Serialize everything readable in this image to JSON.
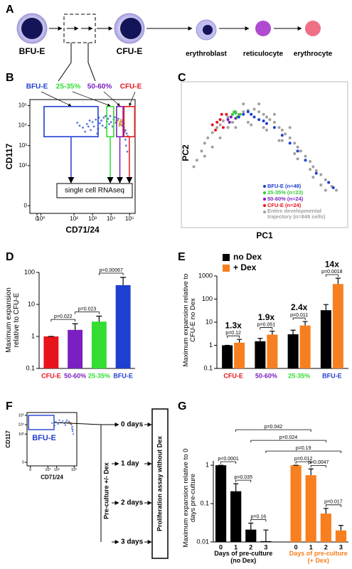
{
  "panel_labels": [
    "A",
    "B",
    "C",
    "D",
    "E",
    "F",
    "G"
  ],
  "diagram": {
    "cells": [
      "BFU-E",
      "CFU-E",
      "erythroblast",
      "reticulocyte",
      "erythrocyte"
    ]
  },
  "flowchart": {
    "steps": [
      "0 days",
      "1 day",
      "2 days",
      "3 days"
    ],
    "treatment": "Pre-culture +/- Dex",
    "assay": "Proliferation assay without Dex"
  },
  "chart_data": [
    {
      "type": "flow",
      "x_label": "CD71/24",
      "y_label": "CD117",
      "scale": "biexponential",
      "xlim": [
        -2,
        200000
      ],
      "ylim": [
        -2,
        200000
      ],
      "xticks": [
        0,
        {
          "value": 1,
          "label": "10⁰"
        },
        {
          "value": 100,
          "label": "10²"
        },
        {
          "value": 1000,
          "label": "10³"
        },
        {
          "value": 10000,
          "label": "10⁴"
        },
        {
          "value": 100000,
          "label": "10⁵"
        }
      ],
      "yticks": [
        0,
        {
          "value": 100,
          "label": "10²"
        },
        {
          "value": 1000,
          "label": "10³"
        },
        {
          "value": 10000,
          "label": "10⁴"
        },
        {
          "value": 100000,
          "label": "10⁵"
        }
      ],
      "series": [
        {
          "color": "#3d5fd6",
          "x": [
            300,
            500,
            800,
            1000,
            1200,
            1500,
            2000,
            2500,
            3000,
            3500,
            4000,
            5000,
            6000,
            7000,
            8000,
            9000,
            10000,
            12000,
            14000,
            16000,
            18000,
            20000,
            25000,
            30000,
            35000,
            40000,
            45000,
            50000,
            60000,
            70000,
            80000,
            55000,
            400,
            700,
            1800,
            2200,
            60000,
            65000,
            75000,
            5000,
            200,
            150,
            600
          ],
          "y": [
            8000,
            12000,
            6000,
            15000,
            9000,
            20000,
            7000,
            13000,
            18000,
            10000,
            25000,
            8000,
            16000,
            22000,
            12000,
            30000,
            15000,
            9000,
            20000,
            26000,
            14000,
            18000,
            22000,
            12000,
            16000,
            10000,
            14000,
            8000,
            6000,
            4000,
            3000,
            5000,
            5000,
            18000,
            4000,
            25000,
            2000,
            1000,
            500,
            30000,
            10000,
            14000,
            9000
          ]
        },
        {
          "color": "#f0a020",
          "x": [
            20000,
            25000,
            30000,
            35000,
            40000,
            45000,
            28000,
            50000,
            38000,
            32000
          ],
          "y": [
            15000,
            18000,
            14000,
            20000,
            12000,
            16000,
            10000,
            13000,
            17000,
            11000
          ]
        }
      ],
      "gates": [
        {
          "label": "BFU-E",
          "color": "#1f3fd0",
          "x": [
            2,
            2000
          ],
          "y": [
            2800,
            90000
          ]
        },
        {
          "label": "25-35%",
          "color": "#33dd33",
          "x": [
            5900,
            14000
          ],
          "y": [
            2800,
            90000
          ]
        },
        {
          "label": "50-60%",
          "color": "#7a1fc0",
          "x": [
            20000,
            45000
          ],
          "y": [
            2800,
            90000
          ]
        },
        {
          "label": "CFU-E",
          "color": "#e8141c",
          "x": [
            50000,
            190000
          ],
          "y": [
            2800,
            90000
          ]
        }
      ],
      "annotation": "single cell RNAseq"
    },
    {
      "type": "scatter",
      "x_label": "PC1",
      "y_label": "PC2",
      "xlim": [
        0,
        100
      ],
      "ylim": [
        0,
        100
      ],
      "legend": "lower-right",
      "series": [
        {
          "name": "BFU-E (n=48)",
          "color": "#1f3fd0",
          "x": [
            32,
            35,
            38,
            40,
            42,
            45,
            48,
            50,
            55,
            60,
            65,
            70,
            75,
            82,
            90,
            93
          ],
          "y": [
            78,
            80,
            82,
            80,
            78,
            76,
            75,
            73,
            70,
            64,
            58,
            52,
            45,
            35,
            28,
            24
          ]
        },
        {
          "name": "25-35% (n=23)",
          "color": "#33cc33",
          "x": [
            28,
            30,
            31,
            29,
            33
          ],
          "y": [
            80,
            81,
            78,
            82,
            80
          ]
        },
        {
          "name": "50-60% (n=24)",
          "color": "#7a1fc0",
          "x": [
            25,
            27,
            26,
            30
          ],
          "y": [
            76,
            78,
            74,
            77
          ]
        },
        {
          "name": "CFU-E (n=24)",
          "color": "#e8141c",
          "x": [
            15,
            18,
            20,
            22,
            17,
            21,
            24
          ],
          "y": [
            72,
            74,
            76,
            70,
            68,
            80,
            80
          ]
        },
        {
          "name": "Entire developmental trajectory (n=848 cells)",
          "color": "#a0a0a0",
          "x": [
            3,
            5,
            8,
            10,
            12,
            15,
            18,
            20,
            22,
            25,
            28,
            30,
            32,
            35,
            38,
            40,
            42,
            45,
            48,
            50,
            52,
            55,
            58,
            60,
            62,
            65,
            68,
            70,
            72,
            75,
            78,
            80,
            82,
            85,
            88,
            90,
            92,
            95,
            30,
            40,
            50,
            60,
            70,
            80,
            20,
            45,
            35,
            55,
            65,
            85,
            25,
            15,
            10,
            48,
            58,
            68,
            78,
            88,
            38,
            28
          ],
          "y": [
            40,
            45,
            52,
            58,
            62,
            66,
            70,
            72,
            75,
            78,
            80,
            82,
            80,
            82,
            83,
            80,
            84,
            82,
            80,
            78,
            76,
            74,
            70,
            68,
            65,
            62,
            58,
            55,
            52,
            48,
            44,
            40,
            37,
            34,
            30,
            28,
            25,
            22,
            70,
            72,
            68,
            60,
            46,
            32,
            62,
            88,
            88,
            80,
            70,
            26,
            70,
            55,
            48,
            70,
            60,
            50,
            38,
            22,
            74,
            74
          ]
        }
      ]
    },
    {
      "type": "bar",
      "y_label": "Maximum expansion relative to CFU-E",
      "scale": "log",
      "ylim": [
        0.1,
        100
      ],
      "yticks": [
        0.1,
        1,
        10,
        100
      ],
      "categories": [
        "CFU-E",
        "50-60%",
        "25-35%",
        "BFU-E"
      ],
      "colors": [
        "#e8141c",
        "#7a1fc0",
        "#33dd33",
        "#1f3fd0"
      ],
      "values": [
        1,
        1.6,
        2.9,
        40
      ],
      "errors": [
        0,
        0.9,
        1.4,
        30
      ],
      "comparisons": [
        {
          "label": "p=0.022",
          "between": [
            0,
            1
          ]
        },
        {
          "label": "p=0.023",
          "between": [
            1,
            2
          ]
        },
        {
          "label": "p=0.00067",
          "between": [
            2,
            3
          ]
        }
      ]
    },
    {
      "type": "grouped_bar",
      "y_label": "Maximum expansion relative to CFU-E no Dex",
      "scale": "log",
      "legend": "top-left",
      "ylim": [
        0.1,
        1000
      ],
      "yticks": [
        0.1,
        1,
        10,
        100,
        1000
      ],
      "categories": [
        "CFU-E",
        "50-60%",
        "25-35%",
        "BFU-E"
      ],
      "colors": [
        "#e8141c",
        "#7a1fc0",
        "#33dd33",
        "#1f3fd0"
      ],
      "series": [
        {
          "name": "no Dex",
          "color": "#000000",
          "values": [
            1,
            1.5,
            3,
            33
          ],
          "errors": [
            0,
            0.5,
            1.5,
            25
          ]
        },
        {
          "name": "+ Dex",
          "color": "#f77f1f",
          "values": [
            1.3,
            2.9,
            7.2,
            450
          ],
          "errors": [
            0.5,
            1.2,
            3.5,
            350
          ]
        }
      ],
      "fold_changes": [
        "1.3x",
        "1.9x",
        "2.4x",
        "14x"
      ],
      "p_values": [
        "p=0.12",
        "p=0.051",
        "p=0.011",
        "p=0.0018"
      ]
    },
    {
      "type": "flow",
      "x_label": "CD71/24",
      "y_label": "CD117",
      "scale": "biexponential",
      "xlim": [
        -2,
        200000
      ],
      "ylim": [
        -2,
        200000
      ],
      "xticks": [
        0,
        {
          "value": 100,
          "label": "10²"
        },
        {
          "value": 1000,
          "label": "10³"
        },
        {
          "value": 100000,
          "label": "10⁵"
        }
      ],
      "yticks": [
        0,
        {
          "value": 1000,
          "label": "10³"
        },
        {
          "value": 10000,
          "label": "10⁴"
        },
        {
          "value": 100000,
          "label": "10⁵"
        }
      ],
      "series": [
        {
          "color": "#3d5fd6",
          "x": [
            300,
            800,
            1500,
            3000,
            5000,
            8000,
            12000,
            20000,
            30000,
            40000,
            50000,
            60000,
            70000,
            25000,
            35000,
            45000,
            15000,
            10000,
            600,
            2000,
            55000,
            65000,
            80000
          ],
          "y": [
            15000,
            20000,
            12000,
            18000,
            25000,
            14000,
            20000,
            16000,
            18000,
            12000,
            10000,
            6000,
            3000,
            22000,
            15000,
            13000,
            30000,
            9000,
            8000,
            30000,
            4000,
            2000,
            1000
          ]
        },
        {
          "color": "#f0a020",
          "x": [
            30000,
            40000,
            35000,
            45000
          ],
          "y": [
            15000,
            12000,
            18000,
            14000
          ]
        }
      ],
      "gates": [
        {
          "label": "BFU-E",
          "color": "#1f3fd0",
          "x": [
            -1,
            500
          ],
          "y": [
            3000,
            100000
          ]
        }
      ]
    },
    {
      "type": "bar_groups",
      "y_label": "Maximum expansion relative to 0 days pre-culture",
      "scale": "log",
      "ylim": [
        0.01,
        1.3
      ],
      "yticks": [
        0.01,
        0.1,
        1
      ],
      "groups": [
        {
          "name": "Days of pre-culture (no Dex)",
          "color": "#000000",
          "categories": [
            "0",
            "1",
            "2",
            "3"
          ],
          "values": [
            1,
            0.21,
            0.021,
            0.0105
          ],
          "errors": [
            0,
            0.12,
            0.01,
            0.01
          ]
        },
        {
          "name": "Days of pre-culture (+ Dex)",
          "color": "#f77f1f",
          "categories": [
            "0",
            "1",
            "2",
            "3"
          ],
          "values": [
            1,
            0.55,
            0.055,
            0.02
          ],
          "errors": [
            0,
            0.25,
            0.02,
            0.007
          ]
        }
      ],
      "comparisons": [
        {
          "label": "p<0.0001",
          "between": [
            [
              0,
              0
            ],
            [
              0,
              1
            ]
          ]
        },
        {
          "label": "p=0.035",
          "between": [
            [
              0,
              1
            ],
            [
              0,
              2
            ]
          ]
        },
        {
          "label": "p=0.16",
          "between": [
            [
              0,
              2
            ],
            [
              0,
              3
            ]
          ]
        },
        {
          "label": "p=0.012",
          "between": [
            [
              1,
              0
            ],
            [
              1,
              1
            ]
          ]
        },
        {
          "label": "p=0.0047",
          "between": [
            [
              1,
              1
            ],
            [
              1,
              2
            ]
          ]
        },
        {
          "label": "p=0.017",
          "between": [
            [
              1,
              2
            ],
            [
              1,
              3
            ]
          ]
        },
        {
          "label": "p=0.19",
          "between": [
            [
              0,
              3
            ],
            [
              1,
              3
            ]
          ]
        },
        {
          "label": "p=0.024",
          "between": [
            [
              0,
              2
            ],
            [
              1,
              2
            ]
          ]
        },
        {
          "label": "p=0.042",
          "between": [
            [
              0,
              1
            ],
            [
              1,
              1
            ]
          ]
        }
      ]
    }
  ]
}
